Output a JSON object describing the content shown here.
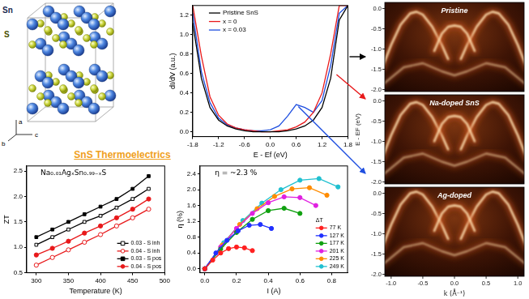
{
  "title": "SnS Thermoelectrics",
  "structure": {
    "atoms": [
      "Sn",
      "S"
    ],
    "axes": [
      "a",
      "b",
      "c"
    ]
  },
  "chart_data": [
    {
      "type": "line",
      "x_label": "E - Ef (eV)",
      "y_label": "dI/dV (a.u.)",
      "x": [
        -1.8,
        -1.6,
        -1.4,
        -1.2,
        -1.0,
        -0.8,
        -0.6,
        -0.4,
        -0.2,
        0,
        0.2,
        0.4,
        0.6,
        0.8,
        1.0,
        1.2,
        1.4,
        1.6,
        1.8
      ],
      "xlim": [
        -1.8,
        1.8
      ],
      "xticks": [
        -1.8,
        -1.2,
        -0.6,
        {
          "value": 0,
          "label": "0.0"
        },
        0.6,
        1.2,
        1.8
      ],
      "ylim": [
        -0.05,
        1.3
      ],
      "yticks": [
        {
          "value": 0,
          "label": "0.0"
        },
        0.2,
        0.4,
        0.6,
        0.8,
        {
          "value": 1,
          "label": "1.0"
        },
        1.2
      ],
      "grid": false,
      "legend": "upper left",
      "series": [
        {
          "name": "Pristine SnS",
          "color": "#000000",
          "marker": "none",
          "line_style": "solid",
          "values": [
            1.12,
            0.55,
            0.25,
            0.12,
            0.06,
            0.03,
            0.01,
            0,
            0,
            0,
            0,
            0.01,
            0.03,
            0.06,
            0.12,
            0.25,
            0.55,
            1.15,
            1.3
          ]
        },
        {
          "name": "x = 0",
          "color": "#e8191b",
          "marker": "none",
          "line_style": "solid",
          "values": [
            1.3,
            0.78,
            0.36,
            0.17,
            0.08,
            0.04,
            0.02,
            0.01,
            0,
            0,
            0.01,
            0.02,
            0.05,
            0.1,
            0.2,
            0.4,
            0.8,
            1.3,
            1.3
          ]
        },
        {
          "name": "x = 0.03",
          "color": "#1f4fe0",
          "marker": "none",
          "line_style": "solid",
          "values": [
            1.22,
            0.62,
            0.3,
            0.14,
            0.07,
            0.04,
            0.02,
            0.01,
            0.01,
            0.02,
            0.06,
            0.16,
            0.28,
            0.25,
            0.2,
            0.32,
            0.68,
            1.22,
            1.3
          ]
        }
      ]
    },
    {
      "type": "line",
      "annotation": "Na₀.₀₁AgₓSn₀.₉₉₋ₓS",
      "x_label": "Temperature (K)",
      "y_label": "ZT",
      "x": [
        300,
        325,
        350,
        375,
        400,
        425,
        450,
        475
      ],
      "xlim": [
        285,
        500
      ],
      "xticks": [
        300,
        350,
        400,
        450,
        500
      ],
      "ylim": [
        0.5,
        2.6
      ],
      "yticks": [
        0.5,
        {
          "value": 1,
          "label": "1.0"
        },
        1.5,
        {
          "value": 2,
          "label": "2.0"
        },
        2.5
      ],
      "grid": false,
      "legend": "lower right",
      "series": [
        {
          "name": "0.03 - S inh",
          "color": "#000000",
          "marker": "open-square",
          "line_style": "solid",
          "values": [
            1.05,
            1.2,
            1.35,
            1.5,
            1.62,
            1.78,
            1.95,
            2.15
          ]
        },
        {
          "name": "0.04 - S inh",
          "color": "#e8191b",
          "marker": "open-circle",
          "line_style": "solid",
          "values": [
            0.65,
            0.8,
            0.95,
            1.1,
            1.25,
            1.42,
            1.58,
            1.75
          ]
        },
        {
          "name": "0.03 - S pos",
          "color": "#000000",
          "marker": "square",
          "line_style": "solid",
          "values": [
            1.2,
            1.35,
            1.5,
            1.65,
            1.8,
            1.95,
            2.15,
            2.4
          ]
        },
        {
          "name": "0.04 - S pos",
          "color": "#e8191b",
          "marker": "circle",
          "line_style": "solid",
          "values": [
            0.85,
            0.98,
            1.12,
            1.28,
            1.42,
            1.58,
            1.75,
            1.95
          ]
        }
      ]
    },
    {
      "type": "line",
      "annotation": "η = ~2.3 %",
      "x_label": "I (A)",
      "y_label": "η (%)",
      "xlim": [
        -0.03,
        0.9
      ],
      "xticks": [
        {
          "value": 0,
          "label": "0.0"
        },
        0.2,
        0.4,
        0.6,
        0.8
      ],
      "ylim": [
        -0.1,
        2.6
      ],
      "yticks": [
        {
          "value": 0,
          "label": "0.0"
        },
        0.4,
        0.8,
        1.2,
        1.6,
        {
          "value": 2,
          "label": "2.0"
        },
        2.4
      ],
      "grid": false,
      "legend": "lower right",
      "legend_title": "ΔT",
      "series": [
        {
          "name": "77 K",
          "color": "#ff2020",
          "marker": "circle",
          "line_style": "solid",
          "x": [
            0,
            0.05,
            0.1,
            0.15,
            0.2,
            0.25,
            0.3
          ],
          "values": [
            0,
            0.22,
            0.4,
            0.51,
            0.55,
            0.53,
            0.46
          ]
        },
        {
          "name": "127 K",
          "color": "#2030ff",
          "marker": "circle",
          "line_style": "solid",
          "x": [
            0,
            0.07,
            0.14,
            0.21,
            0.28,
            0.35,
            0.42
          ],
          "values": [
            0,
            0.4,
            0.72,
            0.96,
            1.1,
            1.12,
            1.02
          ]
        },
        {
          "name": "177 K",
          "color": "#10a010",
          "marker": "circle",
          "line_style": "solid",
          "x": [
            0,
            0.1,
            0.2,
            0.3,
            0.4,
            0.5,
            0.6
          ],
          "values": [
            0,
            0.5,
            0.92,
            1.25,
            1.47,
            1.53,
            1.4
          ]
        },
        {
          "name": "201 K",
          "color": "#e020e0",
          "marker": "circle",
          "line_style": "solid",
          "x": [
            0,
            0.1,
            0.2,
            0.3,
            0.4,
            0.5,
            0.6,
            0.7
          ],
          "values": [
            0,
            0.55,
            1.02,
            1.4,
            1.67,
            1.82,
            1.8,
            1.6
          ]
        },
        {
          "name": "225 K",
          "color": "#ff8c00",
          "marker": "circle",
          "line_style": "solid",
          "x": [
            0,
            0.11,
            0.22,
            0.33,
            0.44,
            0.55,
            0.66,
            0.77
          ],
          "values": [
            0,
            0.6,
            1.12,
            1.52,
            1.83,
            2.02,
            2.05,
            1.86
          ]
        },
        {
          "name": "249 K",
          "color": "#20c0d0",
          "marker": "circle",
          "line_style": "solid",
          "x": [
            0,
            0.12,
            0.24,
            0.36,
            0.48,
            0.6,
            0.72,
            0.84
          ],
          "values": [
            0,
            0.66,
            1.22,
            1.66,
            2.0,
            2.24,
            2.28,
            2.07
          ]
        }
      ]
    }
  ],
  "arpes": {
    "type": "image",
    "x_label": "k (Å⁻¹)",
    "y_label": "E - EF (eV)",
    "xlim": [
      -1.1,
      1.1
    ],
    "xticks": [
      {
        "value": -1,
        "label": "-1.0"
      },
      -0.5,
      {
        "value": 0,
        "label": "0.0"
      },
      0.5,
      {
        "value": 1,
        "label": "1.0"
      }
    ],
    "ylim": [
      -2.05,
      0.15
    ],
    "yticks": [
      {
        "value": 0,
        "label": "0.0"
      },
      -0.5,
      {
        "value": -1,
        "label": "-1.0"
      },
      -1.5,
      {
        "value": -2,
        "label": "-2.0"
      }
    ],
    "panels": [
      {
        "label": "Pristine"
      },
      {
        "label": "Na-doped SnS"
      },
      {
        "label": "Ag-doped"
      }
    ]
  }
}
